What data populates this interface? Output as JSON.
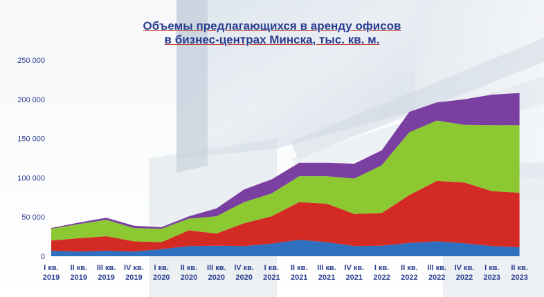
{
  "chart_data": {
    "type": "area",
    "stacked": true,
    "title_line1": "Объемы предлагающихся в аренду офисов",
    "title_line2": "в бизнес-центрах Минска, тыс. кв. м.",
    "xlabel": "",
    "ylabel": "",
    "ylim": [
      0,
      250000
    ],
    "yticks": [
      "0",
      "50 000",
      "100 000",
      "150 000",
      "200 000",
      "250 000"
    ],
    "grid": false,
    "legend": "none",
    "categories": [
      [
        "I кв.",
        "2019"
      ],
      [
        "II кв.",
        "2019"
      ],
      [
        "III кв.",
        "2019"
      ],
      [
        "IV кв.",
        "2019"
      ],
      [
        "I кв.",
        "2020"
      ],
      [
        "II кв.",
        "2020"
      ],
      [
        "III кв.",
        "2020"
      ],
      [
        "IV кв.",
        "2020"
      ],
      [
        "I кв.",
        "2021"
      ],
      [
        "II кв.",
        "2021"
      ],
      [
        "III кв.",
        "2021"
      ],
      [
        "IV кв.",
        "2021"
      ],
      [
        "I кв.",
        "2022"
      ],
      [
        "II кв.",
        "2022"
      ],
      [
        "III кв.",
        "2022"
      ],
      [
        "IV кв.",
        "2022"
      ],
      [
        "I кв.",
        "2023"
      ],
      [
        "II кв.",
        "2023"
      ]
    ],
    "series": [
      {
        "color": "#2f6fc0",
        "values": [
          7000,
          6000,
          7000,
          6000,
          9000,
          13000,
          13500,
          13000,
          16000,
          21000,
          18000,
          13000,
          13500,
          17000,
          19000,
          16500,
          13000,
          11500
        ]
      },
      {
        "color": "#d42a24",
        "values": [
          13000,
          17000,
          18500,
          13000,
          9000,
          20000,
          15500,
          29000,
          35000,
          48000,
          49000,
          41000,
          41500,
          61000,
          77000,
          77500,
          70000,
          69500
        ]
      },
      {
        "color": "#8cc832",
        "values": [
          15000,
          18000,
          21000,
          17000,
          17000,
          15000,
          22000,
          27000,
          29000,
          33000,
          35000,
          45000,
          61000,
          80000,
          77000,
          73500,
          84000,
          86000
        ]
      },
      {
        "color": "#7a3fa0",
        "values": [
          1000,
          2000,
          2500,
          3000,
          2000,
          3000,
          10000,
          16000,
          18000,
          17000,
          17000,
          19000,
          19000,
          26000,
          23000,
          32500,
          39000,
          41000
        ]
      }
    ]
  }
}
